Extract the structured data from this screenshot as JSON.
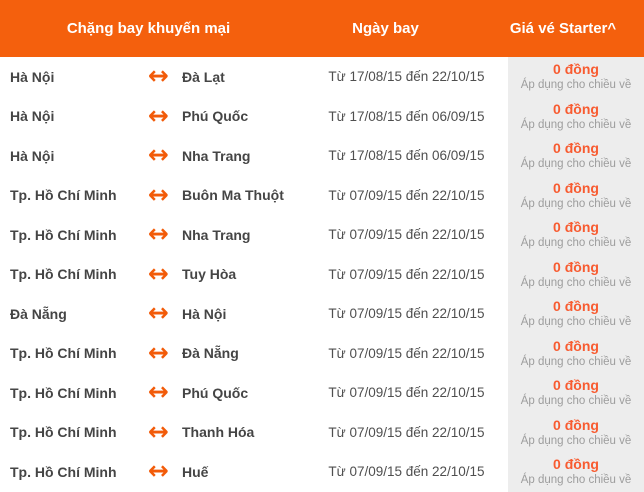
{
  "header": {
    "route_label": "Chặng bay khuyến mại",
    "date_label": "Ngày bay",
    "price_label": "Giá vé Starter^"
  },
  "icons": {
    "round_trip_arrow": "↔"
  },
  "colors": {
    "header_bg": "#f4600d",
    "arrow": "#f25b09",
    "price": "#f85b30",
    "price_column_bg": "#ededed",
    "city_text": "#454545",
    "date_text": "#4f4f4f",
    "note_text": "#9d9d9d"
  },
  "rows": [
    {
      "origin": "Hà Nội",
      "destination": "Đà Lạt",
      "dates": "Từ 17/08/15 đến 22/10/15",
      "price": "0 đồng",
      "note": "Áp dụng cho chiều về"
    },
    {
      "origin": "Hà Nội",
      "destination": "Phú Quốc",
      "dates": "Từ 17/08/15 đến 06/09/15",
      "price": "0 đồng",
      "note": "Áp dụng cho chiều về"
    },
    {
      "origin": "Hà Nội",
      "destination": "Nha Trang",
      "dates": "Từ 17/08/15 đến 06/09/15",
      "price": "0 đồng",
      "note": "Áp dụng cho chiều về"
    },
    {
      "origin": "Tp. Hồ Chí Minh",
      "destination": "Buôn Ma Thuột",
      "dates": "Từ 07/09/15 đến 22/10/15",
      "price": "0 đồng",
      "note": "Áp dụng cho chiều về"
    },
    {
      "origin": "Tp. Hồ Chí Minh",
      "destination": "Nha Trang",
      "dates": "Từ 07/09/15 đến 22/10/15",
      "price": "0 đồng",
      "note": "Áp dụng cho chiều về"
    },
    {
      "origin": "Tp. Hồ Chí Minh",
      "destination": "Tuy Hòa",
      "dates": "Từ 07/09/15 đến 22/10/15",
      "price": "0 đồng",
      "note": "Áp dụng cho chiều về"
    },
    {
      "origin": "Đà Nẵng",
      "destination": "Hà Nội",
      "dates": "Từ 07/09/15 đến 22/10/15",
      "price": "0 đồng",
      "note": "Áp dụng cho chiều về"
    },
    {
      "origin": "Tp. Hồ Chí Minh",
      "destination": "Đà Nẵng",
      "dates": "Từ 07/09/15 đến 22/10/15",
      "price": "0 đồng",
      "note": "Áp dụng cho chiều về"
    },
    {
      "origin": "Tp. Hồ Chí Minh",
      "destination": "Phú Quốc",
      "dates": "Từ 07/09/15 đến 22/10/15",
      "price": "0 đồng",
      "note": "Áp dụng cho chiều về"
    },
    {
      "origin": "Tp. Hồ Chí Minh",
      "destination": "Thanh Hóa",
      "dates": "Từ 07/09/15 đến 22/10/15",
      "price": "0 đồng",
      "note": "Áp dụng cho chiều về"
    },
    {
      "origin": "Tp. Hồ Chí Minh",
      "destination": "Huế",
      "dates": "Từ 07/09/15 đến 22/10/15",
      "price": "0 đồng",
      "note": "Áp dụng cho chiều về"
    }
  ]
}
